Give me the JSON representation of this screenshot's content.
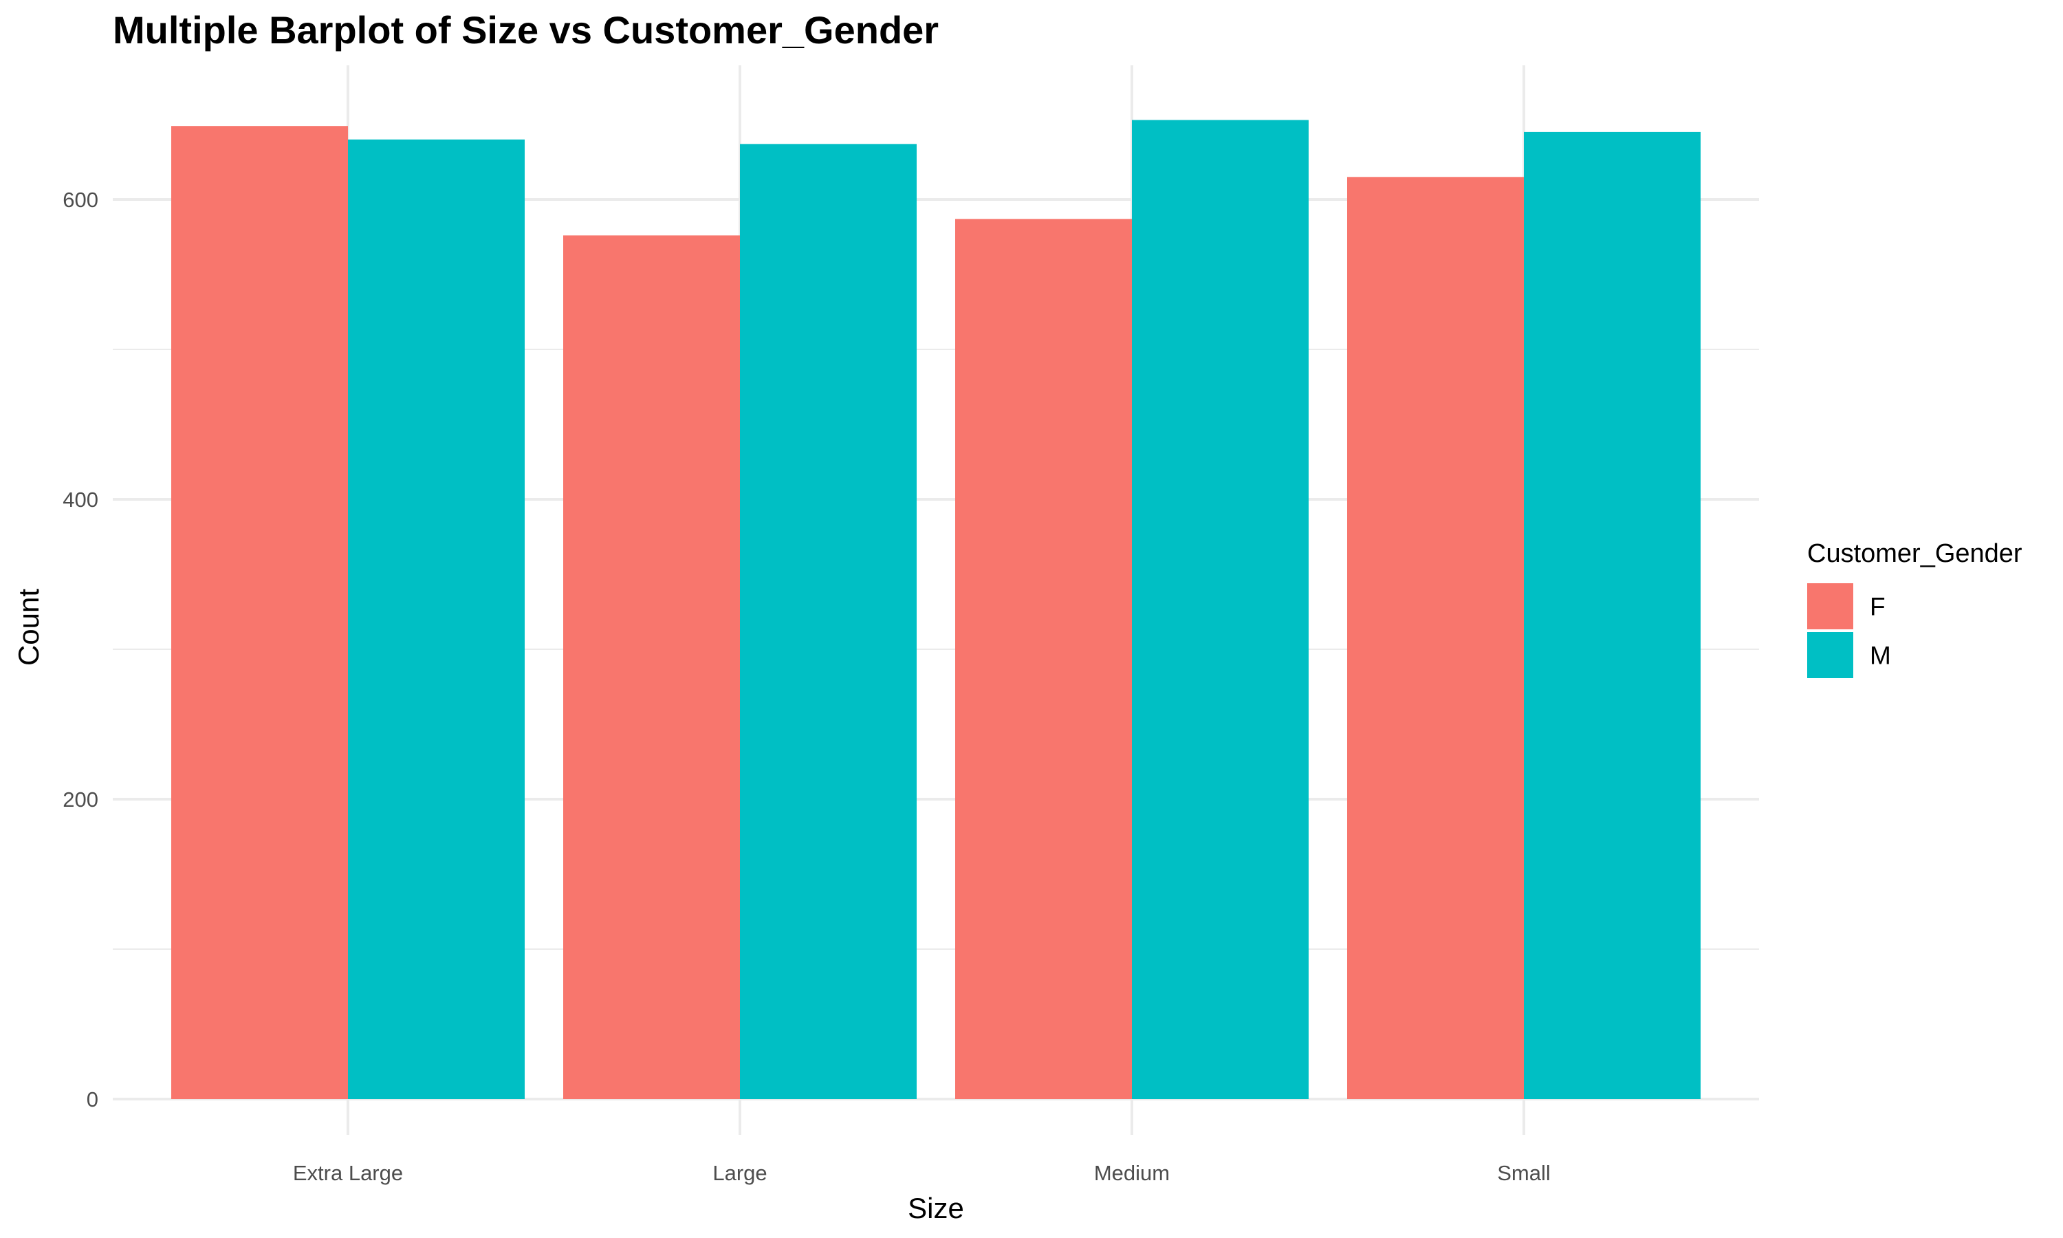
{
  "chart_data": {
    "type": "bar",
    "title": "Multiple Barplot of Size vs Customer_Gender",
    "xlabel": "Size",
    "ylabel": "Count",
    "categories": [
      "Extra Large",
      "Large",
      "Medium",
      "Small"
    ],
    "series": [
      {
        "name": "F",
        "color": "#F8766D",
        "values": [
          649,
          576,
          587,
          615
        ]
      },
      {
        "name": "M",
        "color": "#00BFC4",
        "values": [
          640,
          637,
          653,
          645
        ]
      }
    ],
    "ylim": [
      0,
      690
    ],
    "yticks": [
      0,
      200,
      400,
      600
    ],
    "ytick_labels": [
      "0",
      "200",
      "400",
      "600"
    ],
    "grid": true,
    "legend": {
      "title": "Customer_Gender",
      "position": "right",
      "items": [
        "F",
        "M"
      ]
    }
  }
}
